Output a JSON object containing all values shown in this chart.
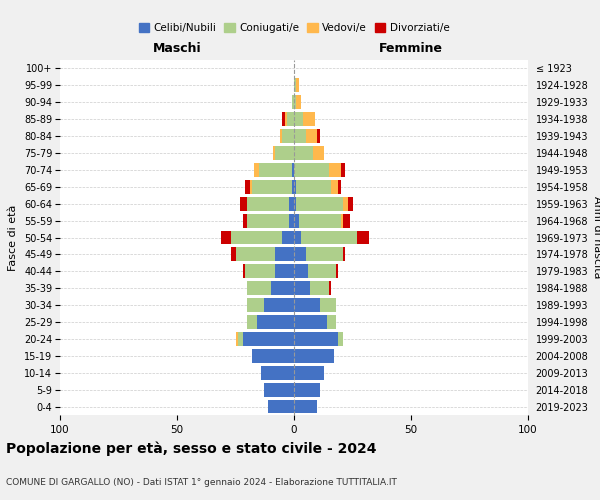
{
  "age_groups": [
    "0-4",
    "5-9",
    "10-14",
    "15-19",
    "20-24",
    "25-29",
    "30-34",
    "35-39",
    "40-44",
    "45-49",
    "50-54",
    "55-59",
    "60-64",
    "65-69",
    "70-74",
    "75-79",
    "80-84",
    "85-89",
    "90-94",
    "95-99",
    "100+"
  ],
  "birth_years": [
    "2019-2023",
    "2014-2018",
    "2009-2013",
    "2004-2008",
    "1999-2003",
    "1994-1998",
    "1989-1993",
    "1984-1988",
    "1979-1983",
    "1974-1978",
    "1969-1973",
    "1964-1968",
    "1959-1963",
    "1954-1958",
    "1949-1953",
    "1944-1948",
    "1939-1943",
    "1934-1938",
    "1929-1933",
    "1924-1928",
    "≤ 1923"
  ],
  "male": {
    "celibi": [
      11,
      13,
      14,
      18,
      22,
      16,
      13,
      10,
      8,
      8,
      5,
      2,
      2,
      1,
      1,
      0,
      0,
      0,
      0,
      0,
      0
    ],
    "coniugati": [
      0,
      0,
      0,
      0,
      2,
      4,
      7,
      10,
      13,
      17,
      22,
      18,
      18,
      17,
      14,
      8,
      5,
      3,
      1,
      0,
      0
    ],
    "vedovi": [
      0,
      0,
      0,
      0,
      1,
      0,
      0,
      0,
      0,
      0,
      0,
      0,
      0,
      1,
      2,
      1,
      1,
      1,
      0,
      0,
      0
    ],
    "divorziati": [
      0,
      0,
      0,
      0,
      0,
      0,
      0,
      0,
      1,
      2,
      4,
      2,
      3,
      2,
      0,
      0,
      0,
      1,
      0,
      0,
      0
    ]
  },
  "female": {
    "nubili": [
      10,
      11,
      13,
      17,
      19,
      14,
      11,
      7,
      6,
      5,
      3,
      2,
      1,
      1,
      0,
      0,
      0,
      0,
      0,
      0,
      0
    ],
    "coniugate": [
      0,
      0,
      0,
      0,
      2,
      4,
      7,
      8,
      12,
      16,
      24,
      18,
      20,
      15,
      15,
      8,
      5,
      4,
      1,
      1,
      0
    ],
    "vedove": [
      0,
      0,
      0,
      0,
      0,
      0,
      0,
      0,
      0,
      0,
      0,
      1,
      2,
      3,
      5,
      5,
      5,
      5,
      2,
      1,
      0
    ],
    "divorziate": [
      0,
      0,
      0,
      0,
      0,
      0,
      0,
      1,
      1,
      1,
      5,
      3,
      2,
      1,
      2,
      0,
      1,
      0,
      0,
      0,
      0
    ]
  },
  "colors": {
    "celibi": "#4472C4",
    "coniugati": "#AECF8B",
    "vedovi": "#FFB84D",
    "divorziati": "#CC0000"
  },
  "xlim": 100,
  "title": "Popolazione per età, sesso e stato civile - 2024",
  "subtitle": "COMUNE DI GARGALLO (NO) - Dati ISTAT 1° gennaio 2024 - Elaborazione TUTTITALIA.IT",
  "xlabel_left": "Maschi",
  "xlabel_right": "Femmine",
  "ylabel_left": "Fasce di età",
  "ylabel_right": "Anni di nascita",
  "bg_color": "#f0f0f0",
  "plot_bg": "#ffffff",
  "xticks": [
    -100,
    -50,
    0,
    50,
    100
  ]
}
